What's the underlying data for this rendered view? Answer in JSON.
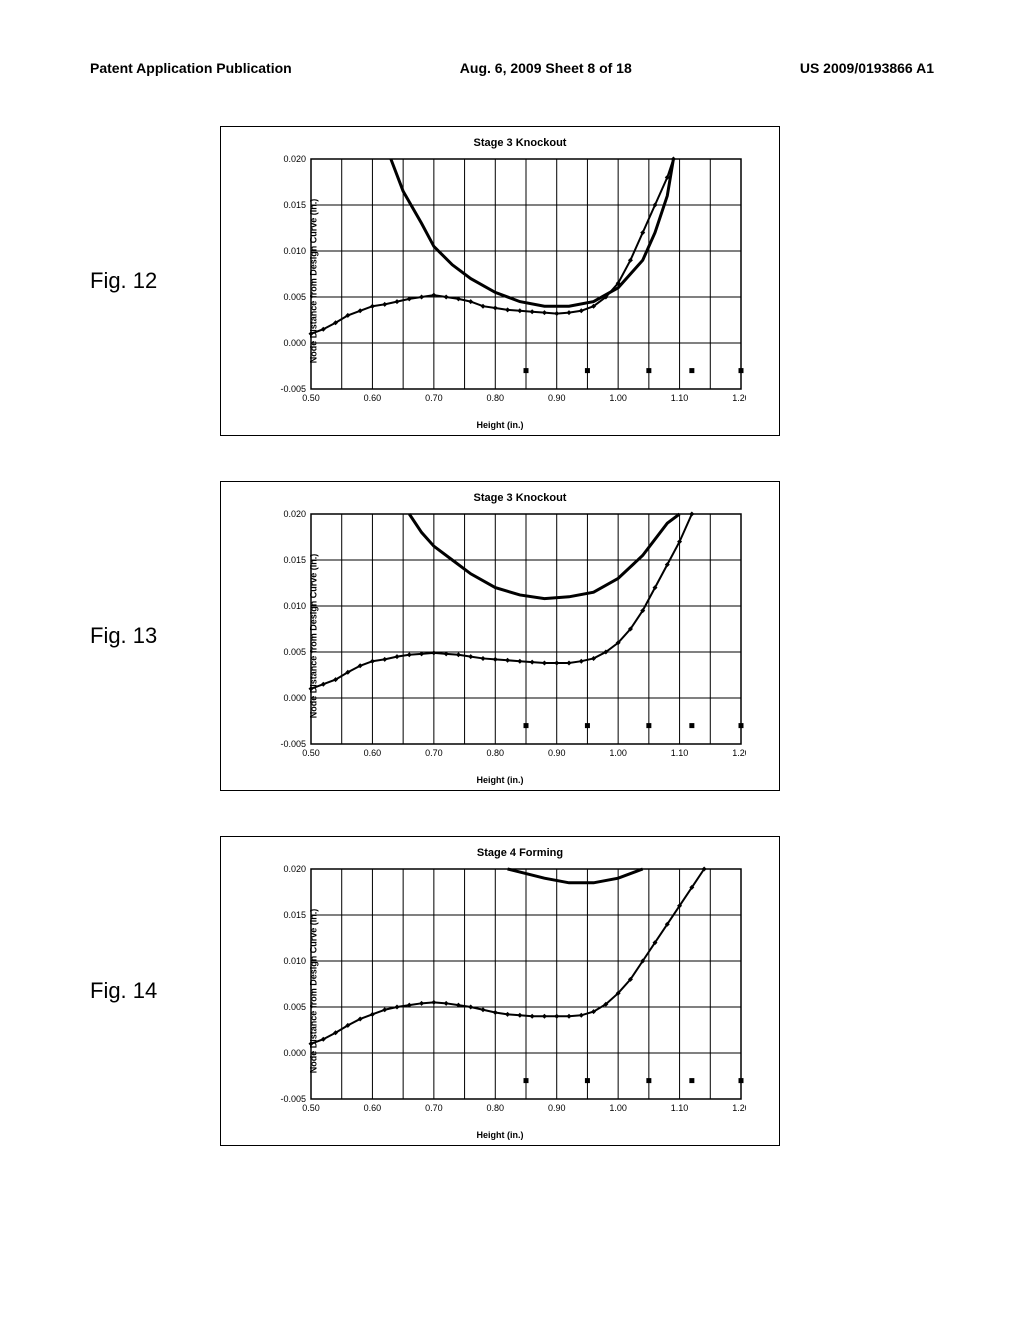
{
  "header": {
    "left": "Patent Application Publication",
    "center": "Aug. 6, 2009  Sheet 8 of 18",
    "right": "US 2009/0193866 A1"
  },
  "fig12": {
    "label": "Fig. 12",
    "title": "Stage 3 Knockout",
    "ylabel": "Node Distance from Design Curve (in.)",
    "xlabel": "Height (in.)",
    "xlim": [
      0.5,
      1.2
    ],
    "ylim": [
      -0.005,
      0.02
    ],
    "xticks": [
      0.5,
      0.6,
      0.7,
      0.8,
      0.9,
      1.0,
      1.1,
      1.2
    ],
    "yticks": [
      -0.005,
      0.0,
      0.005,
      0.01,
      0.015,
      0.02
    ],
    "curve_thick": [
      [
        0.63,
        0.02
      ],
      [
        0.65,
        0.0165
      ],
      [
        0.68,
        0.013
      ],
      [
        0.7,
        0.0105
      ],
      [
        0.73,
        0.0085
      ],
      [
        0.76,
        0.007
      ],
      [
        0.8,
        0.0055
      ],
      [
        0.84,
        0.0045
      ],
      [
        0.88,
        0.004
      ],
      [
        0.92,
        0.004
      ],
      [
        0.96,
        0.0045
      ],
      [
        1.0,
        0.006
      ],
      [
        1.04,
        0.009
      ],
      [
        1.06,
        0.012
      ],
      [
        1.08,
        0.016
      ],
      [
        1.09,
        0.02
      ]
    ],
    "curve_thin": [
      [
        0.5,
        0.001
      ],
      [
        0.52,
        0.0015
      ],
      [
        0.54,
        0.0022
      ],
      [
        0.56,
        0.003
      ],
      [
        0.58,
        0.0035
      ],
      [
        0.6,
        0.004
      ],
      [
        0.62,
        0.0042
      ],
      [
        0.64,
        0.0045
      ],
      [
        0.66,
        0.0048
      ],
      [
        0.68,
        0.005
      ],
      [
        0.7,
        0.0052
      ],
      [
        0.72,
        0.005
      ],
      [
        0.74,
        0.0048
      ],
      [
        0.76,
        0.0045
      ],
      [
        0.78,
        0.004
      ],
      [
        0.8,
        0.0038
      ],
      [
        0.82,
        0.0036
      ],
      [
        0.84,
        0.0035
      ],
      [
        0.86,
        0.0034
      ],
      [
        0.88,
        0.0033
      ],
      [
        0.9,
        0.0032
      ],
      [
        0.92,
        0.0033
      ],
      [
        0.94,
        0.0035
      ],
      [
        0.96,
        0.004
      ],
      [
        0.98,
        0.005
      ],
      [
        1.0,
        0.0065
      ],
      [
        1.02,
        0.009
      ],
      [
        1.04,
        0.012
      ],
      [
        1.06,
        0.015
      ],
      [
        1.08,
        0.018
      ],
      [
        1.09,
        0.02
      ]
    ],
    "squares": [
      [
        0.85,
        -0.003
      ],
      [
        0.95,
        -0.003
      ],
      [
        1.05,
        -0.003
      ],
      [
        1.12,
        -0.003
      ],
      [
        1.2,
        -0.003
      ]
    ]
  },
  "fig13": {
    "label": "Fig. 13",
    "title": "Stage 3 Knockout",
    "ylabel": "Node Distance from Design Curve (in.)",
    "xlabel": "Height (in.)",
    "xlim": [
      0.5,
      1.2
    ],
    "ylim": [
      -0.005,
      0.02
    ],
    "xticks": [
      0.5,
      0.6,
      0.7,
      0.8,
      0.9,
      1.0,
      1.1,
      1.2
    ],
    "yticks": [
      -0.005,
      0.0,
      0.005,
      0.01,
      0.015,
      0.02
    ],
    "curve_thick": [
      [
        0.66,
        0.02
      ],
      [
        0.68,
        0.018
      ],
      [
        0.7,
        0.0165
      ],
      [
        0.73,
        0.015
      ],
      [
        0.76,
        0.0135
      ],
      [
        0.8,
        0.012
      ],
      [
        0.84,
        0.0112
      ],
      [
        0.88,
        0.0108
      ],
      [
        0.92,
        0.011
      ],
      [
        0.96,
        0.0115
      ],
      [
        1.0,
        0.013
      ],
      [
        1.04,
        0.0155
      ],
      [
        1.08,
        0.019
      ],
      [
        1.1,
        0.02
      ]
    ],
    "curve_thin": [
      [
        0.5,
        0.001
      ],
      [
        0.52,
        0.0015
      ],
      [
        0.54,
        0.002
      ],
      [
        0.56,
        0.0028
      ],
      [
        0.58,
        0.0035
      ],
      [
        0.6,
        0.004
      ],
      [
        0.62,
        0.0042
      ],
      [
        0.64,
        0.0045
      ],
      [
        0.66,
        0.0047
      ],
      [
        0.68,
        0.0048
      ],
      [
        0.7,
        0.0049
      ],
      [
        0.72,
        0.0048
      ],
      [
        0.74,
        0.0047
      ],
      [
        0.76,
        0.0045
      ],
      [
        0.78,
        0.0043
      ],
      [
        0.8,
        0.0042
      ],
      [
        0.82,
        0.0041
      ],
      [
        0.84,
        0.004
      ],
      [
        0.86,
        0.0039
      ],
      [
        0.88,
        0.0038
      ],
      [
        0.9,
        0.0038
      ],
      [
        0.92,
        0.0038
      ],
      [
        0.94,
        0.004
      ],
      [
        0.96,
        0.0043
      ],
      [
        0.98,
        0.005
      ],
      [
        1.0,
        0.006
      ],
      [
        1.02,
        0.0075
      ],
      [
        1.04,
        0.0095
      ],
      [
        1.06,
        0.012
      ],
      [
        1.08,
        0.0145
      ],
      [
        1.1,
        0.017
      ],
      [
        1.12,
        0.02
      ]
    ],
    "squares": [
      [
        0.85,
        -0.003
      ],
      [
        0.95,
        -0.003
      ],
      [
        1.05,
        -0.003
      ],
      [
        1.12,
        -0.003
      ],
      [
        1.2,
        -0.003
      ]
    ]
  },
  "fig14": {
    "label": "Fig. 14",
    "title": "Stage 4 Forming",
    "ylabel": "Node Distance from Design Curve (in.)",
    "xlabel": "Height (in.)",
    "xlim": [
      0.5,
      1.2
    ],
    "ylim": [
      -0.005,
      0.02
    ],
    "xticks": [
      0.5,
      0.6,
      0.7,
      0.8,
      0.9,
      1.0,
      1.1,
      1.2
    ],
    "yticks": [
      -0.005,
      0.0,
      0.005,
      0.01,
      0.015,
      0.02
    ],
    "curve_thick": [
      [
        0.82,
        0.02
      ],
      [
        0.85,
        0.0195
      ],
      [
        0.88,
        0.019
      ],
      [
        0.92,
        0.0185
      ],
      [
        0.96,
        0.0185
      ],
      [
        1.0,
        0.019
      ],
      [
        1.04,
        0.02
      ]
    ],
    "curve_thin": [
      [
        0.5,
        0.001
      ],
      [
        0.52,
        0.0015
      ],
      [
        0.54,
        0.0022
      ],
      [
        0.56,
        0.003
      ],
      [
        0.58,
        0.0037
      ],
      [
        0.6,
        0.0042
      ],
      [
        0.62,
        0.0047
      ],
      [
        0.64,
        0.005
      ],
      [
        0.66,
        0.0052
      ],
      [
        0.68,
        0.0054
      ],
      [
        0.7,
        0.0055
      ],
      [
        0.72,
        0.0054
      ],
      [
        0.74,
        0.0052
      ],
      [
        0.76,
        0.005
      ],
      [
        0.78,
        0.0047
      ],
      [
        0.8,
        0.0044
      ],
      [
        0.82,
        0.0042
      ],
      [
        0.84,
        0.0041
      ],
      [
        0.86,
        0.004
      ],
      [
        0.88,
        0.004
      ],
      [
        0.9,
        0.004
      ],
      [
        0.92,
        0.004
      ],
      [
        0.94,
        0.0041
      ],
      [
        0.96,
        0.0045
      ],
      [
        0.98,
        0.0053
      ],
      [
        1.0,
        0.0065
      ],
      [
        1.02,
        0.008
      ],
      [
        1.04,
        0.01
      ],
      [
        1.06,
        0.012
      ],
      [
        1.08,
        0.014
      ],
      [
        1.1,
        0.016
      ],
      [
        1.12,
        0.018
      ],
      [
        1.14,
        0.02
      ]
    ],
    "squares": [
      [
        0.85,
        -0.003
      ],
      [
        0.95,
        -0.003
      ],
      [
        1.05,
        -0.003
      ],
      [
        1.12,
        -0.003
      ],
      [
        1.2,
        -0.003
      ]
    ]
  },
  "colors": {
    "line": "#000000",
    "background": "#ffffff",
    "grid": "#000000"
  }
}
